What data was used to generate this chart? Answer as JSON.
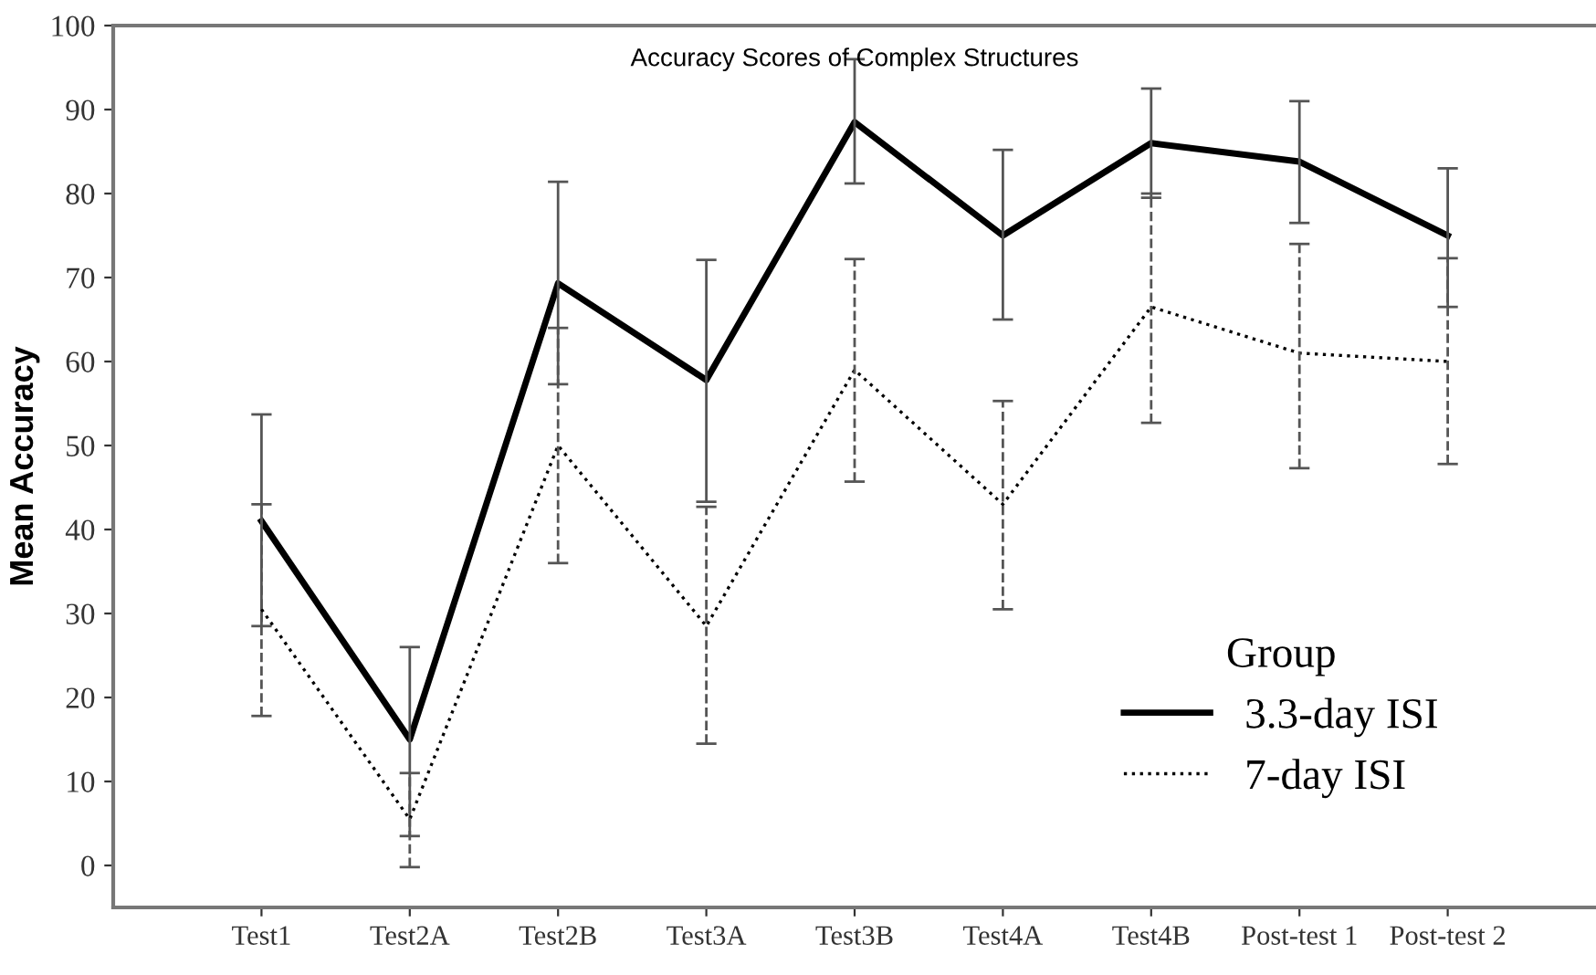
{
  "chart_data": {
    "type": "line",
    "title": "Accuracy Scores of Complex Structures",
    "ylabel": "Mean Accuracy",
    "legend_title": "Group",
    "categories": [
      "Test1",
      "Test2A",
      "Test2B",
      "Test3A",
      "Test3B",
      "Test4A",
      "Test4B",
      "Post-test 1",
      "Post-test 2"
    ],
    "series": [
      {
        "name": "3.3-day ISI",
        "color": "#000000",
        "line_style": "solid",
        "values": [
          41,
          15,
          69.3,
          57.8,
          88.5,
          75,
          86,
          83.8,
          75
        ],
        "errors": [
          [
            28.5,
            53.7
          ],
          [
            3.5,
            26
          ],
          [
            57.3,
            81.4
          ],
          [
            43.3,
            72.1
          ],
          [
            81.2,
            96
          ],
          [
            65,
            85.2
          ],
          [
            79.5,
            92.5
          ],
          [
            76.5,
            91
          ],
          [
            66.5,
            83
          ]
        ]
      },
      {
        "name": "7-day ISI",
        "color": "#000000",
        "line_style": "dotted",
        "values": [
          30.5,
          5.5,
          50,
          28.5,
          59,
          43,
          66.5,
          61,
          60
        ],
        "errors": [
          [
            17.8,
            43
          ],
          [
            -0.2,
            11
          ],
          [
            36,
            64
          ],
          [
            14.5,
            42.7
          ],
          [
            45.7,
            72.2
          ],
          [
            30.5,
            55.3
          ],
          [
            52.7,
            80
          ],
          [
            47.3,
            74
          ],
          [
            47.8,
            72.3
          ]
        ]
      }
    ],
    "ylim": [
      -5,
      100
    ],
    "yticks": [
      0,
      10,
      20,
      30,
      40,
      50,
      60,
      70,
      80,
      90,
      100
    ],
    "grid": false,
    "legend": "bottom right",
    "marker": "none"
  }
}
